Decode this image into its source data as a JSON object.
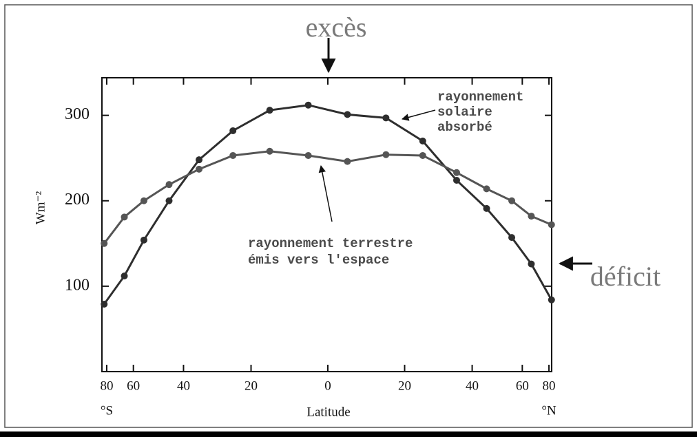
{
  "chart_data": {
    "type": "line",
    "ylabel": "Wm⁻²",
    "xlabel": "Latitude",
    "x_scale": "sine",
    "xlim": [
      -90,
      90
    ],
    "xticks": [
      {
        "value": -80,
        "label": "80"
      },
      {
        "value": -60,
        "label": "60"
      },
      {
        "value": -40,
        "label": "40"
      },
      {
        "value": -20,
        "label": "20"
      },
      0,
      20,
      40,
      60,
      80
    ],
    "ylim": [
      0,
      344
    ],
    "yticks": [
      100,
      200,
      300
    ],
    "hemisphere_labels": [
      {
        "x": -80,
        "text": "°S"
      },
      {
        "x": 80,
        "text": "°N"
      }
    ],
    "series": [
      {
        "color": "#2e2e2e",
        "x": [
          -85,
          -65,
          -55,
          -45,
          -35,
          -25,
          -15,
          -5,
          5,
          15,
          25,
          35,
          45,
          55,
          65,
          85
        ],
        "values": [
          79,
          112,
          154,
          200,
          248,
          282,
          306,
          312,
          301,
          297,
          270,
          224,
          191,
          157,
          126,
          84
        ]
      },
      {
        "color": "#555555",
        "x": [
          -85,
          -65,
          -55,
          -45,
          -35,
          -25,
          -15,
          -5,
          5,
          15,
          25,
          35,
          45,
          55,
          65,
          85
        ],
        "values": [
          150,
          181,
          200,
          219,
          237,
          253,
          258,
          253,
          246,
          254,
          253,
          233,
          214,
          200,
          182,
          172
        ]
      }
    ],
    "annotations": [
      {
        "lines": [
          "excès"
        ]
      },
      {
        "lines": [
          "déficit"
        ]
      },
      {
        "lines": [
          "rayonnement",
          "solaire",
          "absorbé"
        ]
      },
      {
        "lines": [
          "rayonnement terrestre",
          "émis vers l'espace"
        ]
      }
    ]
  }
}
